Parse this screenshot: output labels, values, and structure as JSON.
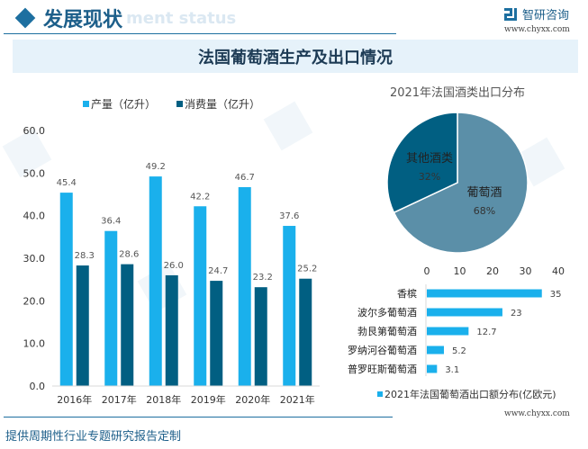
{
  "header": {
    "title": "发展现状",
    "ghost_text": "ment status",
    "logo_name": "智研咨询",
    "logo_url": "www.chyxx.com",
    "banner_title": "法国葡萄酒生产及出口情况"
  },
  "footer": {
    "url": "www.chyxx.com",
    "text": "提供周期性行业专题研究报告定制"
  },
  "colors": {
    "light_blue": "#1ab0ec",
    "dark_blue": "#015f82",
    "pie_grape": "#5b8fa8",
    "pie_other": "#015f82",
    "brand": "#1d6fa0"
  },
  "chart_data": [
    {
      "type": "bar",
      "title": "",
      "categories": [
        "2016年",
        "2017年",
        "2018年",
        "2019年",
        "2020年",
        "2021年"
      ],
      "series": [
        {
          "name": "产量（亿升）",
          "values": [
            45.4,
            36.4,
            49.2,
            42.2,
            46.7,
            37.6
          ]
        },
        {
          "name": "消费量（亿升）",
          "values": [
            28.3,
            28.6,
            26.0,
            24.7,
            23.2,
            25.2
          ]
        }
      ],
      "ylim": [
        0,
        60
      ],
      "yticks": [
        "0.0",
        "10.0",
        "20.0",
        "30.0",
        "40.0",
        "50.0",
        "60.0"
      ],
      "ytick_values": [
        0,
        10,
        20,
        30,
        40,
        50,
        60
      ],
      "legend": "top",
      "grid": false
    },
    {
      "type": "pie",
      "title": "2021年法国酒类出口分布",
      "slices": [
        {
          "label": "葡萄酒",
          "value": 68,
          "pct_label": "68%"
        },
        {
          "label": "其他酒类",
          "value": 32,
          "pct_label": "32%"
        }
      ]
    },
    {
      "type": "bar",
      "orientation": "horizontal",
      "title": "",
      "categories": [
        "香槟",
        "波尔多葡萄酒",
        "勃艮第葡萄酒",
        "罗纳河谷葡萄酒",
        "普罗旺斯葡萄酒"
      ],
      "values": [
        35,
        23,
        12.7,
        5.2,
        3.1
      ],
      "value_labels": [
        "35",
        "23",
        "12.7",
        "5.2",
        "3.1"
      ],
      "series_name": "2021年法国葡萄酒出口额分布(亿欧元)",
      "xlim": [
        0,
        40
      ],
      "xticks": [
        "0",
        "10",
        "20",
        "30",
        "40"
      ],
      "xtick_values": [
        0,
        10,
        20,
        30,
        40
      ],
      "legend": "bottom",
      "grid": false
    }
  ]
}
